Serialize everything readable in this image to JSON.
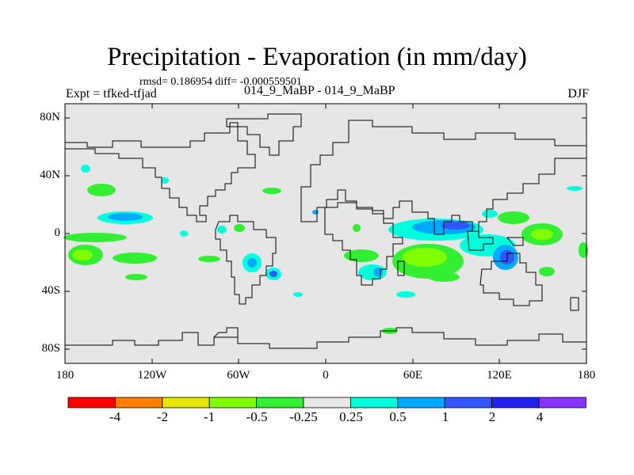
{
  "title": "Precipitation - Evaporation (in mm/day)",
  "stats": "rmsd= 0.186954 diff= -0.000559501",
  "expt": "Expt = tfked-tfjad",
  "case": "014_9_MaBP - 014_9_MaBP",
  "season": "DJF",
  "lat_labels": [
    "80N",
    "40N",
    "0",
    "40S",
    "80S"
  ],
  "lon_labels": [
    "180",
    "120W",
    "60W",
    "0",
    "60E",
    "120E",
    "180"
  ],
  "colorbar": {
    "labels": [
      "-4",
      "-2",
      "-1",
      "-0.5",
      "-0.25",
      "0.25",
      "0.5",
      "1",
      "2",
      "4"
    ],
    "colors": [
      "#ff0000",
      "#ff8000",
      "#e6e600",
      "#80ff00",
      "#33ee33",
      "#e6e6e6",
      "#00ffdd",
      "#00aaff",
      "#3355ff",
      "#2222ee",
      "#8833ff"
    ]
  }
}
